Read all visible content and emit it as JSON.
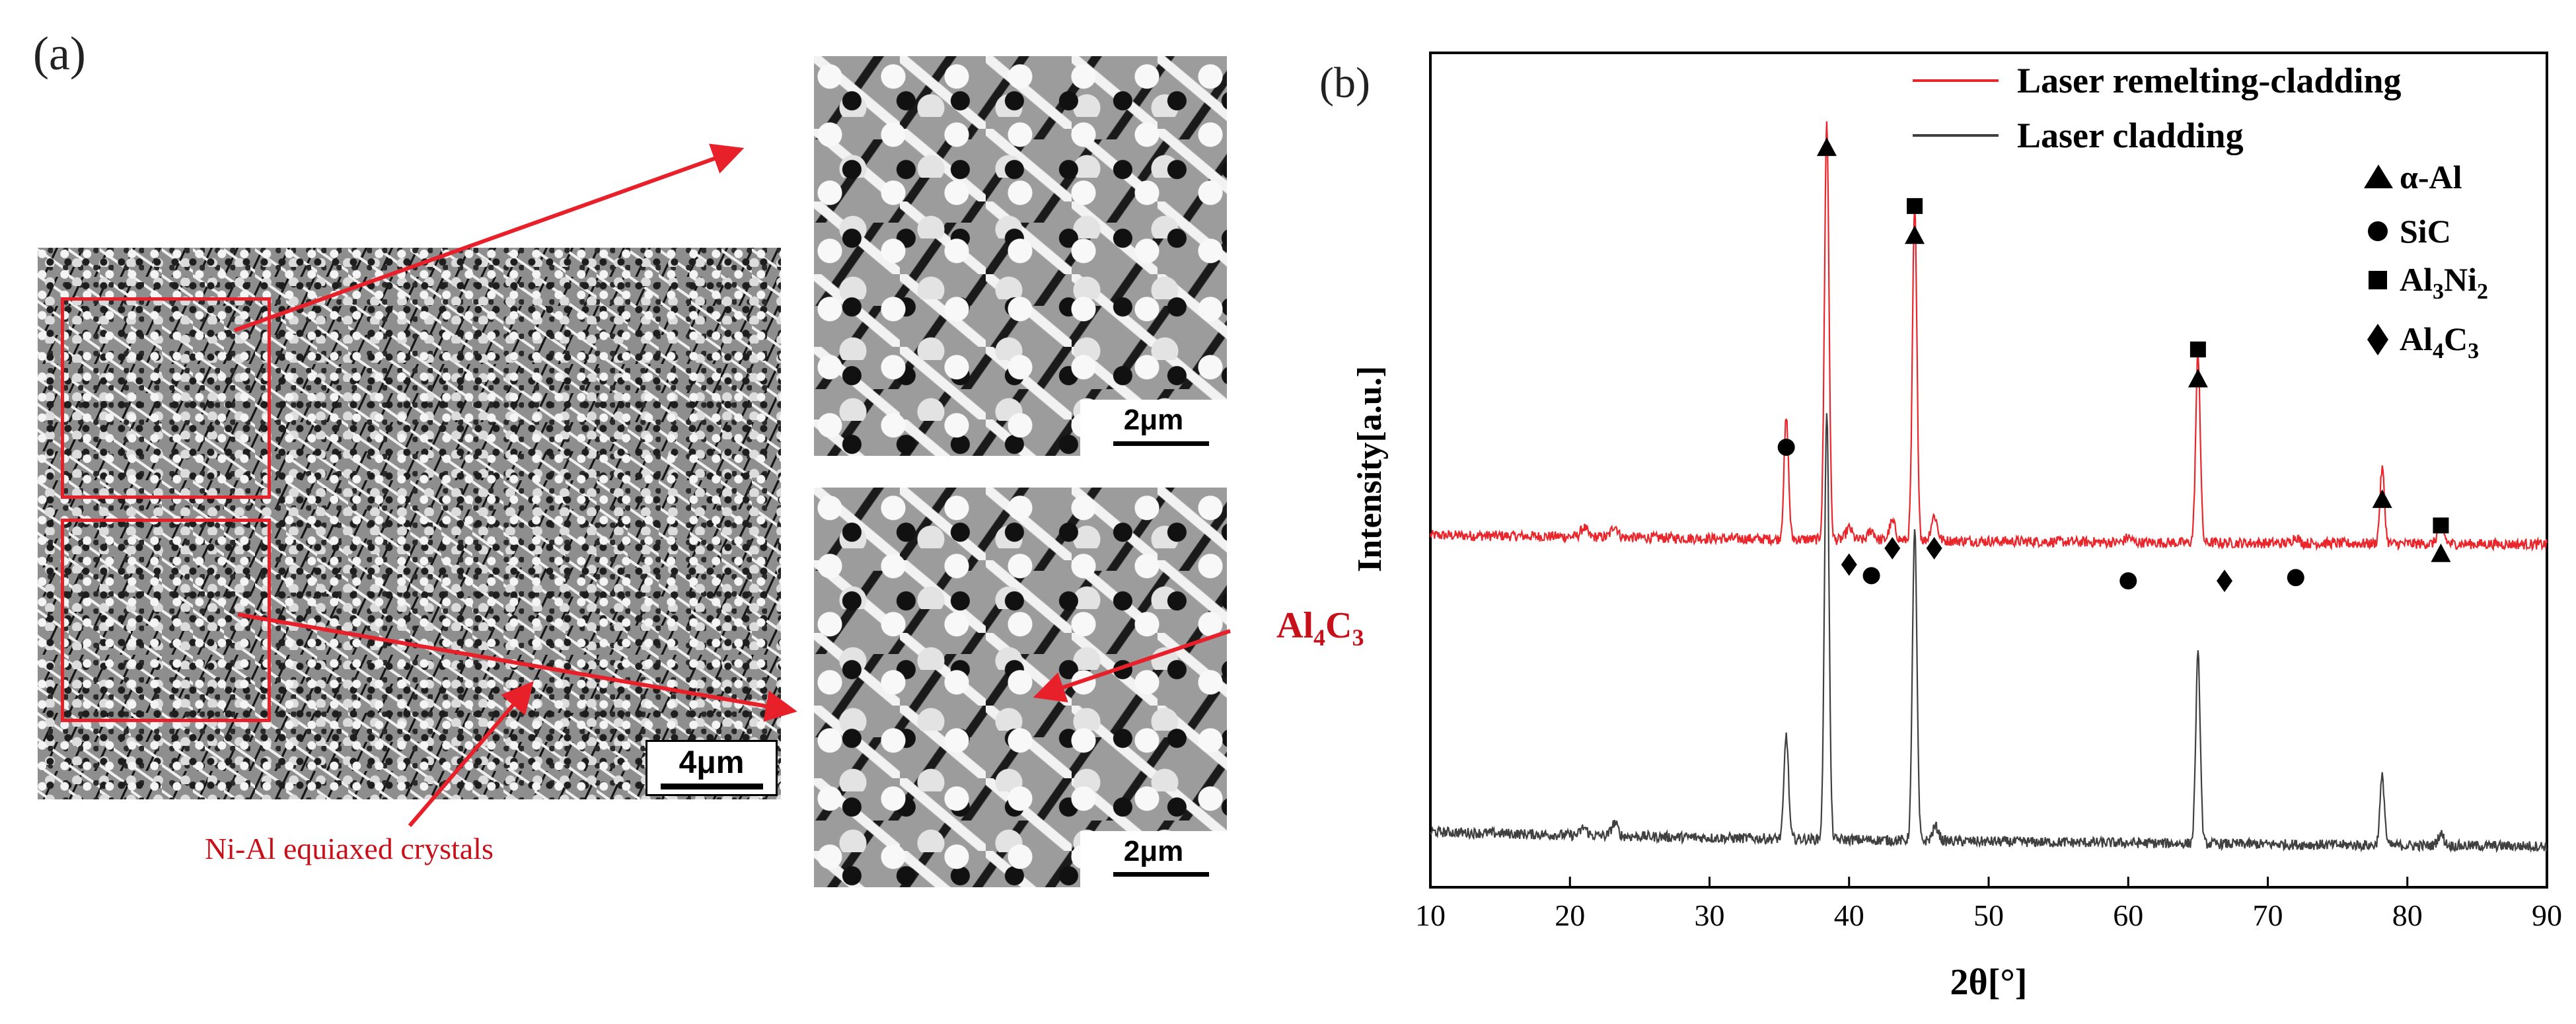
{
  "panel_a": {
    "label": "(a)",
    "scale_main": "4μm",
    "scale_zoom_top": "2μm",
    "scale_zoom_bottom": "2μm",
    "annotation_equiaxed": "Ni-Al equiaxed crystals",
    "annotation_carbide_main": "Al",
    "annotation_carbide_sub1": "4",
    "annotation_carbide_mid": "C",
    "annotation_carbide_sub2": "3"
  },
  "panel_b": {
    "label": "(b)"
  },
  "colors": {
    "remelting": "#e8262c",
    "cladding": "#404040",
    "annotation_red": "#c8101a",
    "marker": "#000000"
  },
  "chart_data": {
    "type": "line",
    "title": "",
    "xlabel": "2θ[°]",
    "ylabel": "Intensity[a.u.]",
    "xlim": [
      10,
      90
    ],
    "xticks": [
      10,
      20,
      30,
      40,
      50,
      60,
      70,
      80,
      90
    ],
    "yticks": [],
    "grid": false,
    "legend_position": "top-right",
    "series": [
      {
        "name": "Laser remelting-cladding",
        "color": "#e8262c",
        "baseline": [
          [
            10,
            1.0
          ],
          [
            20,
            0.98
          ],
          [
            30,
            0.95
          ],
          [
            40,
            0.93
          ],
          [
            50,
            0.91
          ],
          [
            60,
            0.89
          ],
          [
            70,
            0.88
          ],
          [
            80,
            0.87
          ],
          [
            90,
            0.86
          ]
        ],
        "peaks": [
          [
            21.0,
            0.14
          ],
          [
            23.2,
            0.18
          ],
          [
            35.5,
            1.85
          ],
          [
            38.4,
            6.4
          ],
          [
            40.0,
            0.18
          ],
          [
            41.6,
            0.15
          ],
          [
            43.1,
            0.28
          ],
          [
            44.7,
            5.1
          ],
          [
            46.1,
            0.38
          ],
          [
            60.0,
            0.08
          ],
          [
            65.0,
            2.9
          ],
          [
            72.0,
            0.1
          ],
          [
            78.2,
            1.15
          ],
          [
            82.4,
            0.3
          ]
        ]
      },
      {
        "name": "Laser cladding",
        "color": "#404040",
        "baseline": [
          [
            10,
            -3.55
          ],
          [
            20,
            -3.6
          ],
          [
            30,
            -3.64
          ],
          [
            40,
            -3.67
          ],
          [
            50,
            -3.7
          ],
          [
            60,
            -3.72
          ],
          [
            70,
            -3.74
          ],
          [
            80,
            -3.76
          ],
          [
            90,
            -3.77
          ]
        ],
        "peaks": [
          [
            21.0,
            0.12
          ],
          [
            23.2,
            0.2
          ],
          [
            35.5,
            1.6
          ],
          [
            38.4,
            6.6
          ],
          [
            44.7,
            4.8
          ],
          [
            46.2,
            0.22
          ],
          [
            65.0,
            2.9
          ],
          [
            78.2,
            1.05
          ],
          [
            82.4,
            0.18
          ]
        ]
      }
    ],
    "phase_legend": [
      {
        "symbol": "triangle",
        "name": "α-Al"
      },
      {
        "symbol": "circle",
        "name": "SiC"
      },
      {
        "symbol": "square",
        "name": "Al",
        "sub": "3",
        "name2": "Ni",
        "sub2": "2"
      },
      {
        "symbol": "diamond",
        "name": "Al",
        "sub": "4",
        "name2": "C",
        "sub2": "3"
      }
    ],
    "phase_markers": [
      {
        "x": 35.5,
        "level": 2.35,
        "symbol": "circle"
      },
      {
        "x": 38.4,
        "level": 6.95,
        "symbol": "triangle"
      },
      {
        "x": 40.0,
        "level": 0.55,
        "symbol": "diamond"
      },
      {
        "x": 41.6,
        "level": 0.38,
        "symbol": "circle"
      },
      {
        "x": 43.1,
        "level": 0.8,
        "symbol": "diamond"
      },
      {
        "x": 44.7,
        "level": 5.6,
        "symbol": "triangle"
      },
      {
        "x": 44.7,
        "level": 6.05,
        "symbol": "square"
      },
      {
        "x": 46.1,
        "level": 0.8,
        "symbol": "diamond"
      },
      {
        "x": 60.0,
        "level": 0.3,
        "symbol": "circle"
      },
      {
        "x": 65.0,
        "level": 3.4,
        "symbol": "triangle"
      },
      {
        "x": 65.0,
        "level": 3.85,
        "symbol": "square"
      },
      {
        "x": 66.9,
        "level": 0.3,
        "symbol": "diamond"
      },
      {
        "x": 72.0,
        "level": 0.35,
        "symbol": "circle"
      },
      {
        "x": 78.2,
        "level": 1.55,
        "symbol": "triangle"
      },
      {
        "x": 82.4,
        "level": 0.72,
        "symbol": "triangle"
      },
      {
        "x": 82.4,
        "level": 1.15,
        "symbol": "square"
      }
    ]
  }
}
